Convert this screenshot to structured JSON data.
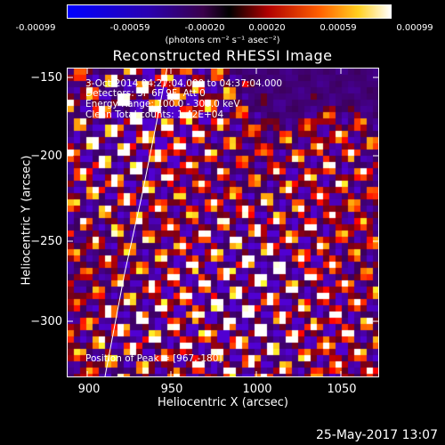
{
  "colorbar": {
    "ticks": [
      "-0.00099",
      "-0.00059",
      "-0.00020",
      "0.00020",
      "0.00059",
      "0.00099"
    ],
    "units": "(photons cm⁻² s⁻¹ asec⁻²)"
  },
  "title": "Reconstructed RHESSI Image",
  "annotations": {
    "time": "3-Oct-2014 04:27:04.000 to 04:37:04.000",
    "detectors": "Detectors: 3F 6F 9F, Att 0",
    "energy": "Energy Range: 100.0 - 300.0 keV",
    "clean": "Clean     Total counts: 1.42E+04",
    "peak": "Position of Peak = [967,-180]"
  },
  "axes": {
    "xlabel": "Heliocentric X (arcsec)",
    "ylabel": "Heliocentric Y (arcsec)",
    "xticks": [
      "900",
      "950",
      "1000",
      "1050"
    ],
    "yticks": [
      "−150",
      "−200",
      "−250",
      "−300"
    ]
  },
  "timestamp": "25-May-2017 13:07",
  "colors": {
    "background": "#000000",
    "foreground": "#ffffff"
  }
}
